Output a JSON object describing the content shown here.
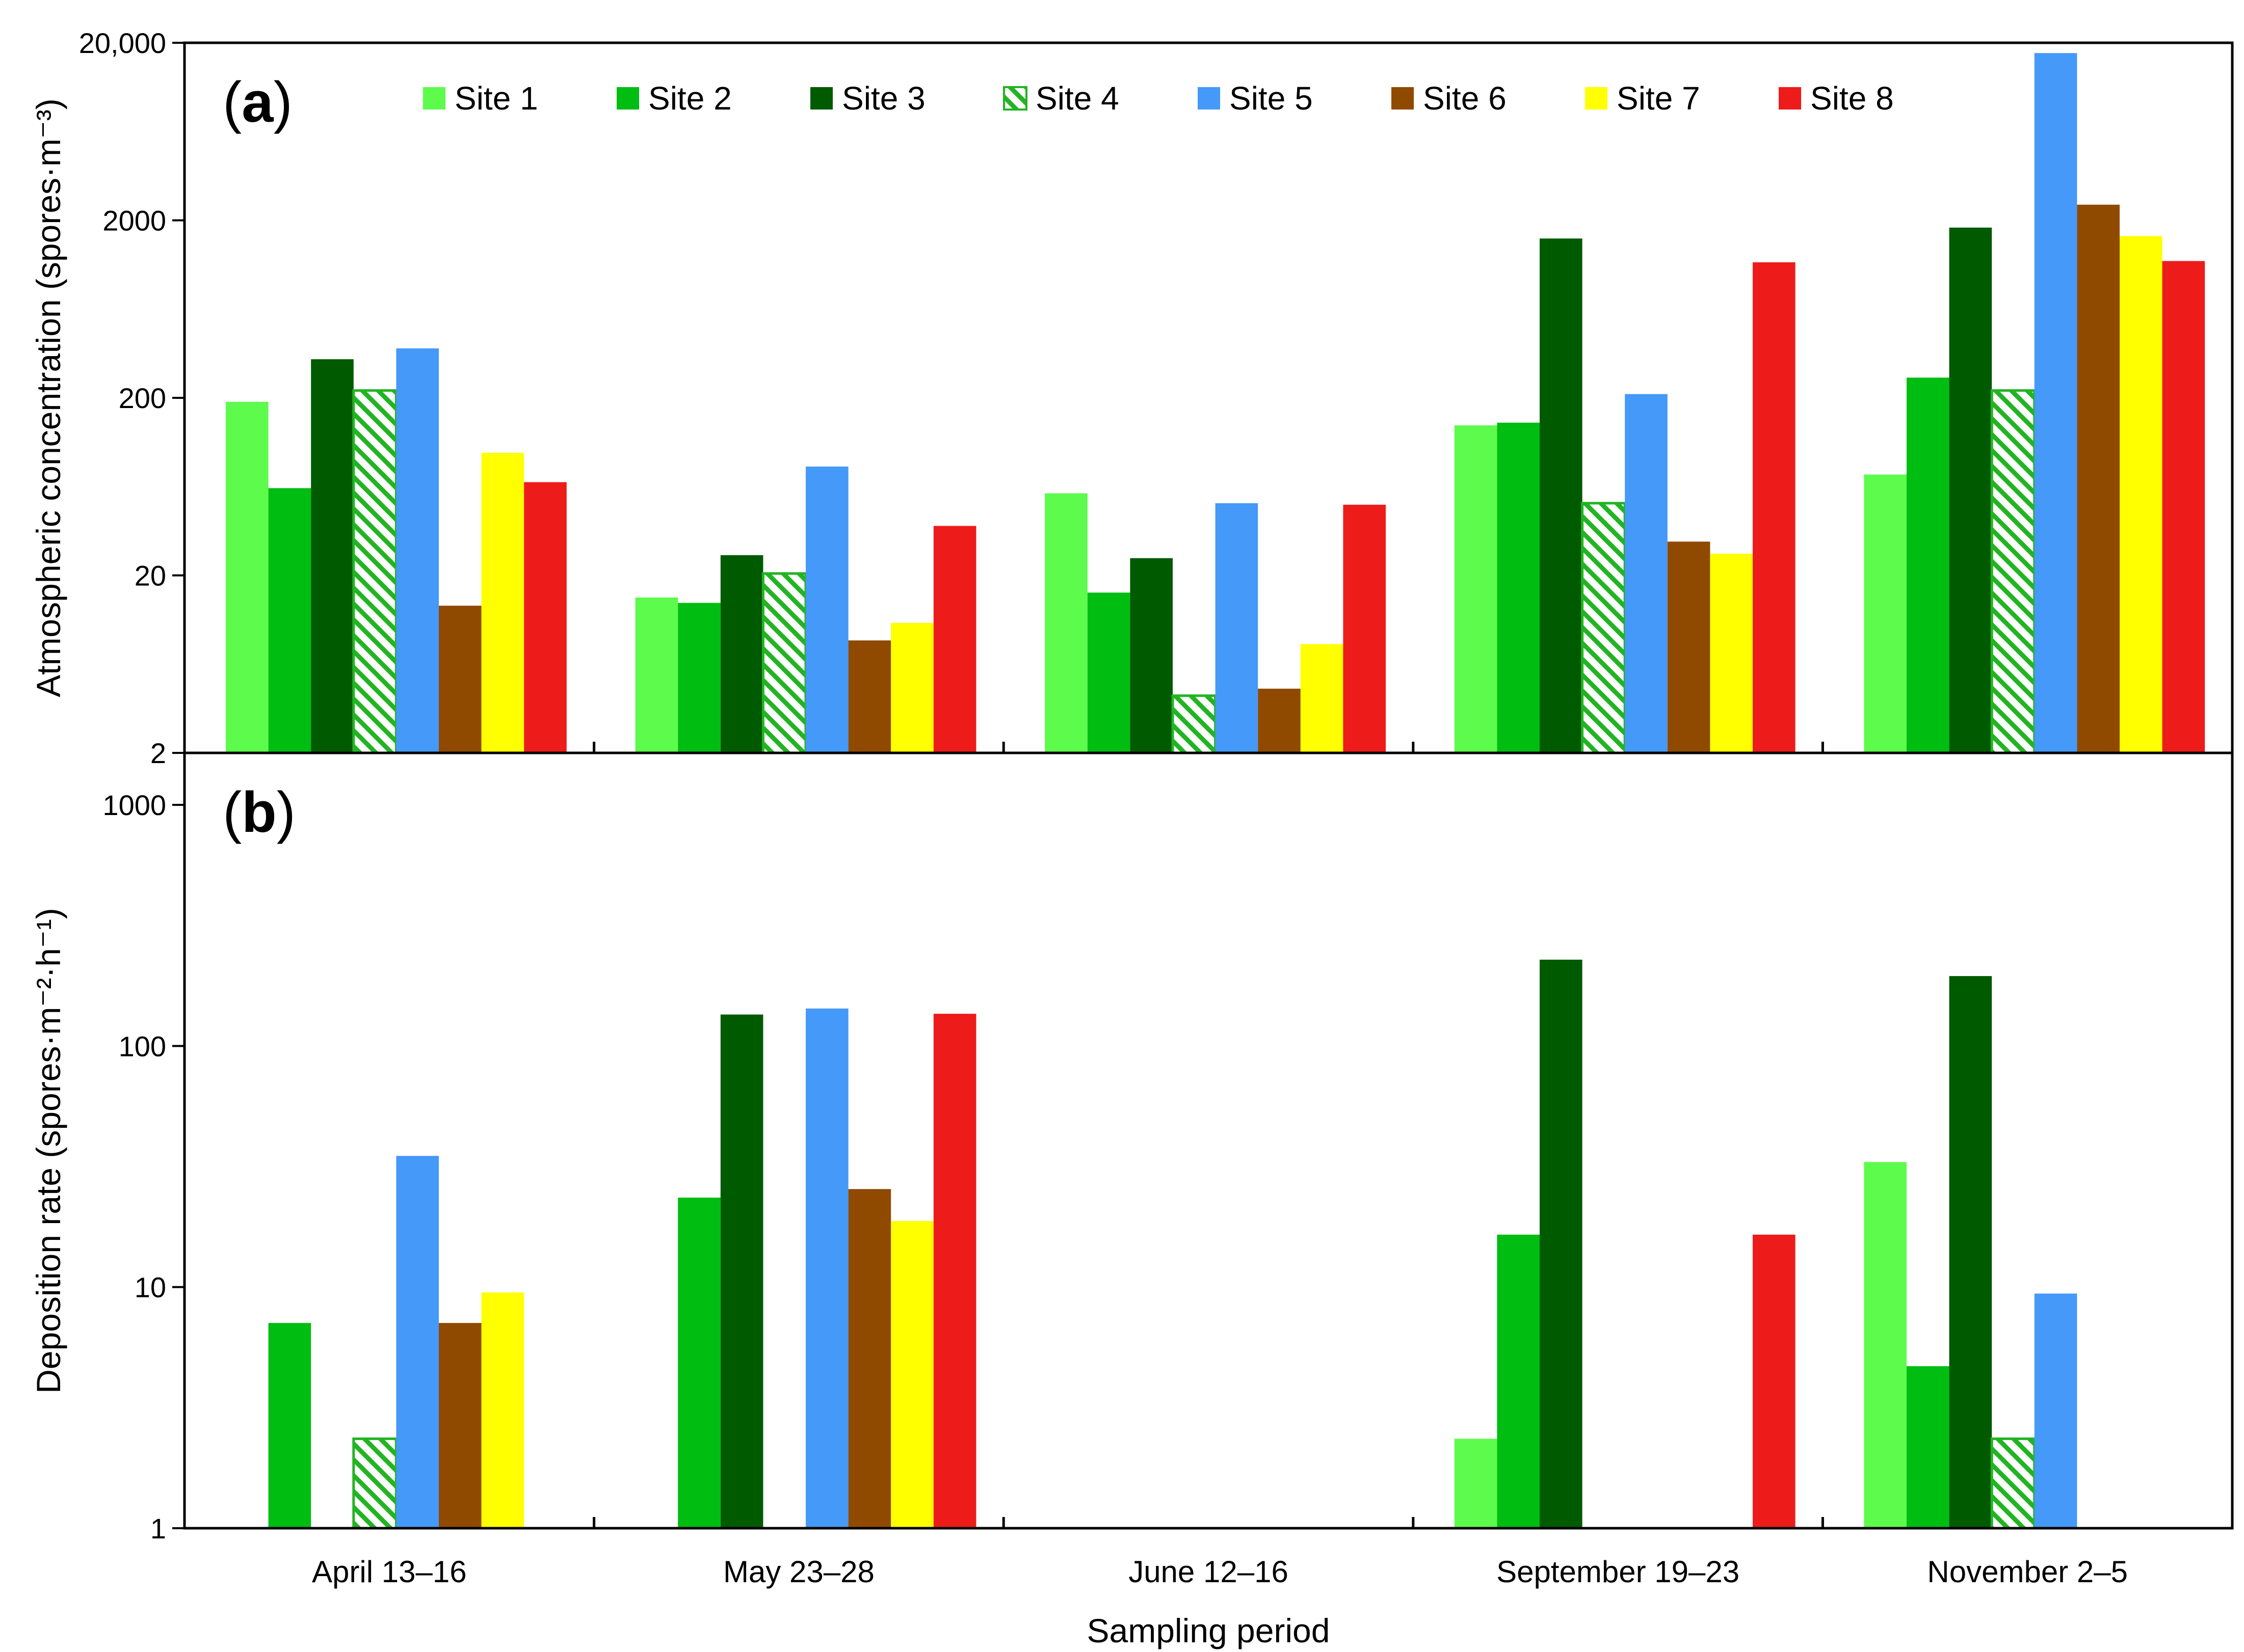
{
  "chart_data": {
    "type": "bar",
    "xlabel": "Sampling period",
    "categories": [
      "April 13–16",
      "May 23–28",
      "June 12–16",
      "September 19–23",
      "November 2–5"
    ],
    "legend": {
      "placement": "top",
      "items": [
        "Site 1",
        "Site 2",
        "Site 3",
        "Site 4",
        "Site 5",
        "Site 6",
        "Site 7",
        "Site 8"
      ]
    },
    "colors": {
      "Site 1": "#5dfb4b",
      "Site 2": "#00bd12",
      "Site 3": "#005a00",
      "Site 4": "#22b422",
      "Site 5": "#4599f8",
      "Site 6": "#8f4a00",
      "Site 7": "#ffff00",
      "Site 8": "#ee1b1b"
    },
    "panels": [
      {
        "id": "a",
        "label_letter": "a",
        "label_open": "(",
        "label_close": ")",
        "ylabel": "Atmospheric concentration (spores·m⁻³)",
        "yscale": "log",
        "ylim": [
          2,
          20000
        ],
        "ticks": [
          {
            "value": 2,
            "label": "2"
          },
          {
            "value": 20,
            "label": "20"
          },
          {
            "value": 200,
            "label": "200"
          },
          {
            "value": 2000,
            "label": "2000"
          },
          {
            "value": 20000,
            "label": "20,000"
          }
        ],
        "series": [
          {
            "name": "Site 1",
            "values": [
              190,
              15,
              58,
              140,
              74
            ]
          },
          {
            "name": "Site 2",
            "values": [
              62,
              14,
              16,
              145,
              260
            ]
          },
          {
            "name": "Site 3",
            "values": [
              330,
              26,
              25,
              1580,
              1820
            ]
          },
          {
            "name": "Site 4",
            "values": [
              220,
              20.5,
              4.2,
              51,
              220
            ]
          },
          {
            "name": "Site 5",
            "values": [
              380,
              82,
              51,
              210,
              17500
            ]
          },
          {
            "name": "Site 6",
            "values": [
              13.5,
              8.6,
              4.6,
              31,
              2450
            ]
          },
          {
            "name": "Site 7",
            "values": [
              98,
              10.8,
              8.2,
              26.5,
              1630
            ]
          },
          {
            "name": "Site 8",
            "values": [
              67,
              38,
              50,
              1160,
              1180
            ]
          }
        ]
      },
      {
        "id": "b",
        "label_letter": "b",
        "label_open": "(",
        "label_close": ")",
        "ylabel": "Deposition rate (spores·m⁻²·h⁻¹)",
        "yscale": "log",
        "ylim": [
          1,
          1000
        ],
        "ticks": [
          {
            "value": 1,
            "label": "1"
          },
          {
            "value": 10,
            "label": "10"
          },
          {
            "value": 100,
            "label": "100"
          },
          {
            "value": 1000,
            "label": "1000"
          }
        ],
        "series": [
          {
            "name": "Site 1",
            "values": [
              null,
              null,
              null,
              2.35,
              33
            ]
          },
          {
            "name": "Site 2",
            "values": [
              7.1,
              23.5,
              null,
              16.5,
              4.7
            ]
          },
          {
            "name": "Site 3",
            "values": [
              null,
              135,
              null,
              228,
              195
            ]
          },
          {
            "name": "Site 4",
            "values": [
              2.35,
              null,
              null,
              null,
              2.35
            ]
          },
          {
            "name": "Site 5",
            "values": [
              35,
              143,
              null,
              null,
              9.4
            ]
          },
          {
            "name": "Site 6",
            "values": [
              7.1,
              25.5,
              null,
              null,
              null
            ]
          },
          {
            "name": "Site 7",
            "values": [
              9.5,
              18.8,
              null,
              null,
              null
            ]
          },
          {
            "name": "Site 8",
            "values": [
              null,
              136,
              null,
              16.5,
              null
            ]
          }
        ]
      }
    ]
  }
}
